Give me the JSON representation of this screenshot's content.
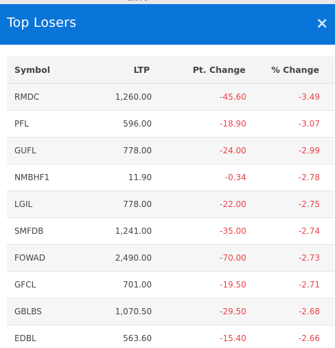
{
  "modal": {
    "title": "Top Losers",
    "close_symbol": "×"
  },
  "table": {
    "headers": {
      "symbol": "Symbol",
      "ltp": "LTP",
      "pt_change": "Pt. Change",
      "pct_change": "% Change"
    },
    "rows": [
      {
        "symbol": "RMDC",
        "ltp": "1,260.00",
        "pt_change": "-45.60",
        "pct_change": "-3.49"
      },
      {
        "symbol": "PFL",
        "ltp": "596.00",
        "pt_change": "-18.90",
        "pct_change": "-3.07"
      },
      {
        "symbol": "GUFL",
        "ltp": "778.00",
        "pt_change": "-24.00",
        "pct_change": "-2.99"
      },
      {
        "symbol": "NMBHF1",
        "ltp": "11.90",
        "pt_change": "-0.34",
        "pct_change": "-2.78"
      },
      {
        "symbol": "LGIL",
        "ltp": "778.00",
        "pt_change": "-22.00",
        "pct_change": "-2.75"
      },
      {
        "symbol": "SMFDB",
        "ltp": "1,241.00",
        "pt_change": "-35.00",
        "pct_change": "-2.74"
      },
      {
        "symbol": "FOWAD",
        "ltp": "2,490.00",
        "pt_change": "-70.00",
        "pct_change": "-2.73"
      },
      {
        "symbol": "GFCL",
        "ltp": "701.00",
        "pt_change": "-19.50",
        "pct_change": "-2.71"
      },
      {
        "symbol": "GBLBS",
        "ltp": "1,070.50",
        "pt_change": "-29.50",
        "pct_change": "-2.68"
      },
      {
        "symbol": "EDBL",
        "ltp": "563.60",
        "pt_change": "-15.40",
        "pct_change": "-2.66"
      }
    ]
  },
  "colors": {
    "header_bg": "#0a75d9",
    "negative": "#e8434a"
  }
}
